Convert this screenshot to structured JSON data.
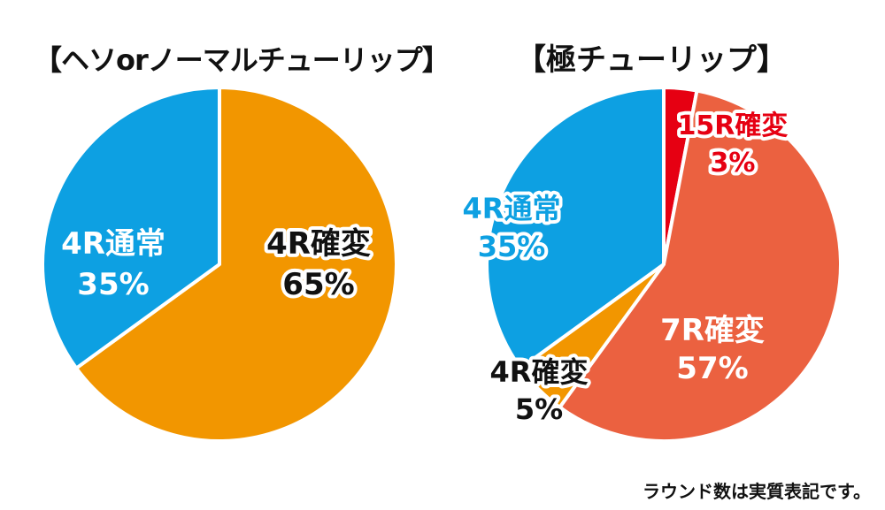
{
  "note": "ラウンド数は実質表記です。",
  "colors": {
    "blue": "#0DA0E2",
    "orange": "#F29600",
    "coral": "#EB6140",
    "red": "#E60012",
    "text_dark": "#111111",
    "text_light": "#ffffff"
  },
  "chart_data": [
    {
      "type": "pie",
      "title": "【ヘソorノーマルチューリップ】",
      "slices": [
        {
          "label": "4R確変",
          "value": 65,
          "pct_text": "65%",
          "color": "#F29600",
          "text_color": "#111111"
        },
        {
          "label": "4R通常",
          "value": 35,
          "pct_text": "35%",
          "color": "#0DA0E2",
          "text_color": "#ffffff"
        }
      ]
    },
    {
      "type": "pie",
      "title": "【極チューリップ】",
      "slices": [
        {
          "label": "15R確変",
          "value": 3,
          "pct_text": "3%",
          "color": "#E60012",
          "text_color": "#E60012"
        },
        {
          "label": "7R確変",
          "value": 57,
          "pct_text": "57%",
          "color": "#EB6140",
          "text_color": "#ffffff"
        },
        {
          "label": "4R確変",
          "value": 5,
          "pct_text": "5%",
          "color": "#F29600",
          "text_color": "#111111"
        },
        {
          "label": "4R通常",
          "value": 35,
          "pct_text": "35%",
          "color": "#0DA0E2",
          "text_color": "#0DA0E2"
        }
      ]
    }
  ]
}
